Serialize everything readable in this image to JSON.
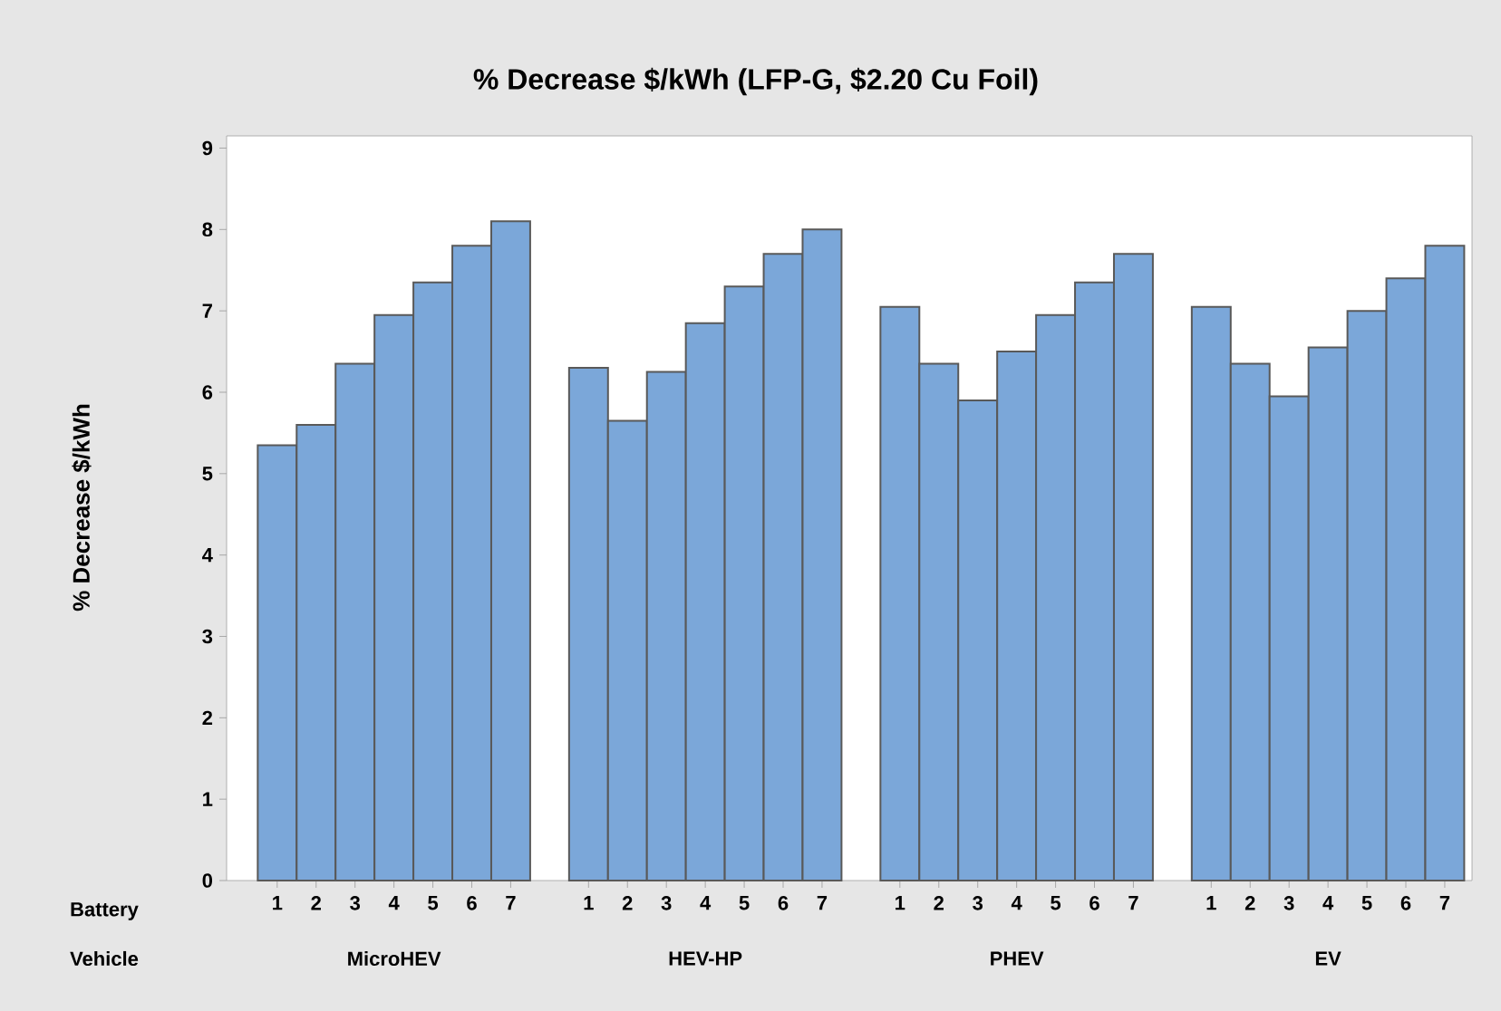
{
  "chart_data": {
    "type": "bar",
    "title": "% Decrease $/kWh (LFP-G, $2.20 Cu Foil)",
    "ylabel": "% Decrease $/kWh",
    "categories": [
      "1",
      "2",
      "3",
      "4",
      "5",
      "6",
      "7",
      null,
      "1",
      "2",
      "3",
      "4",
      "5",
      "6",
      "7",
      null,
      "1",
      "2",
      "3",
      "4",
      "5",
      "6",
      "7",
      null,
      "1",
      "2",
      "3",
      "4",
      "5",
      "6",
      "7"
    ],
    "values": [
      5.35,
      5.6,
      6.35,
      6.95,
      7.35,
      7.8,
      8.1,
      null,
      6.3,
      5.65,
      6.25,
      6.85,
      7.3,
      7.7,
      8.0,
      null,
      7.05,
      6.35,
      5.9,
      6.5,
      6.95,
      7.35,
      7.7,
      null,
      7.05,
      6.35,
      5.95,
      6.55,
      7.0,
      7.4,
      7.8
    ],
    "color": "#7ba7d9",
    "annotations": [
      "Battery",
      "Vehicle",
      "MicroHEV",
      "HEV-HP",
      "PHEV",
      "EV"
    ],
    "ylim": [
      0,
      9.15
    ],
    "yticks": [
      0,
      1,
      2,
      3,
      4,
      5,
      6,
      7,
      8,
      9
    ],
    "grid": false
  }
}
